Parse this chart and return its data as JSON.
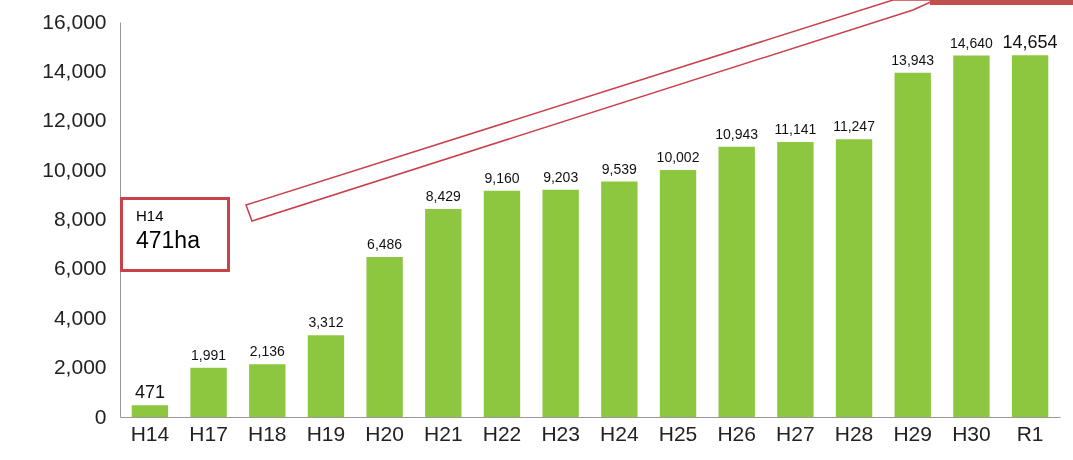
{
  "chart_data": {
    "type": "bar",
    "categories": [
      "H14",
      "H17",
      "H18",
      "H19",
      "H20",
      "H21",
      "H22",
      "H23",
      "H24",
      "H25",
      "H26",
      "H27",
      "H28",
      "H29",
      "H30",
      "R1"
    ],
    "values": [
      471,
      1991,
      2136,
      3312,
      6486,
      8429,
      9160,
      9203,
      9539,
      10002,
      10943,
      11141,
      11247,
      13943,
      14640,
      14654
    ],
    "color": "#8dc63f",
    "ylim": [
      0,
      16000
    ],
    "yticks": [
      0,
      {
        "value": 2000,
        "label": "2,000"
      },
      {
        "value": 4000,
        "label": "4,000"
      },
      {
        "value": 6000,
        "label": "6,000"
      },
      {
        "value": 8000,
        "label": "8,000"
      },
      {
        "value": 10000,
        "label": "10,000"
      },
      {
        "value": 12000,
        "label": "12,000"
      },
      {
        "value": 14000,
        "label": "14,000"
      },
      {
        "value": 16000,
        "label": "16,000"
      }
    ],
    "grid": false,
    "value_labels": [
      "471",
      "1,991",
      "2,136",
      "3,312",
      "6,486",
      "8,429",
      "9,160",
      "9,203",
      "9,539",
      "10,002",
      "10,943",
      "11,141",
      "11,247",
      "13,943",
      "14,640",
      "14,654"
    ],
    "annotations": [
      "H14",
      "471ha"
    ]
  }
}
